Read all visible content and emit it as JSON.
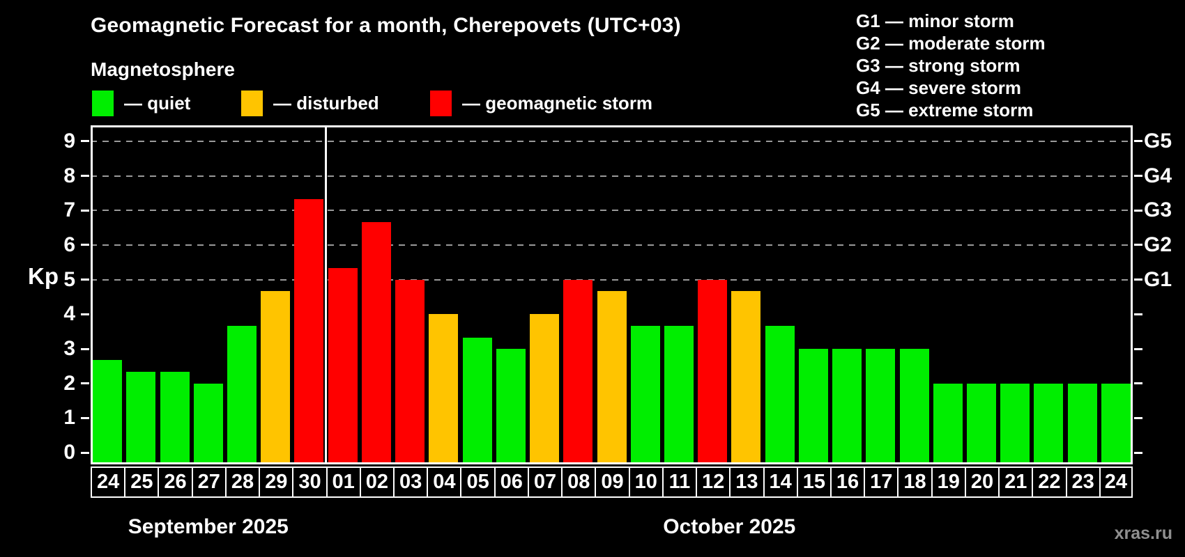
{
  "page": {
    "title": "Geomagnetic Forecast for a month, Cherepovets (UTC+03)",
    "subtitle": "Magnetosphere",
    "watermark": "xras.ru"
  },
  "legend": {
    "items": [
      {
        "status": "quiet",
        "label": "— quiet"
      },
      {
        "status": "disturbed",
        "label": "— disturbed"
      },
      {
        "status": "storm",
        "label": "— geomagnetic storm"
      }
    ]
  },
  "storm_scale_legend": [
    "G1 — minor storm",
    "G2 — moderate storm",
    "G3 — strong storm",
    "G4 — severe storm",
    "G5 — extreme storm"
  ],
  "colors": {
    "background": "#000000",
    "quiet": "#00ee00",
    "disturbed": "#ffc400",
    "storm": "#ff0000",
    "grid": "#9a9a9a",
    "axis": "#ffffff",
    "watermark": "#8f8f8f"
  },
  "chart_data": {
    "type": "bar",
    "title": "Geomagnetic Forecast for a month, Cherepovets (UTC+03)",
    "ylabel": "Kp",
    "ylim": [
      -0.34,
      9.46
    ],
    "y_ticks": [
      0,
      1,
      2,
      3,
      4,
      5,
      6,
      7,
      8,
      9
    ],
    "gridlines": [
      5,
      6,
      7,
      8,
      9
    ],
    "grid_on": true,
    "legend_position": "top",
    "right_axis": [
      {
        "kp": 5,
        "label": "G1"
      },
      {
        "kp": 6,
        "label": "G2"
      },
      {
        "kp": 7,
        "label": "G3"
      },
      {
        "kp": 8,
        "label": "G4"
      },
      {
        "kp": 9,
        "label": "G5"
      }
    ],
    "months": [
      {
        "label": "September 2025",
        "start": 0,
        "count": 7
      },
      {
        "label": "October 2025",
        "start": 7,
        "count": 24
      }
    ],
    "bars": [
      {
        "day": "24",
        "kp": 2.67,
        "status": "quiet"
      },
      {
        "day": "25",
        "kp": 2.33,
        "status": "quiet"
      },
      {
        "day": "26",
        "kp": 2.33,
        "status": "quiet"
      },
      {
        "day": "27",
        "kp": 2.0,
        "status": "quiet"
      },
      {
        "day": "28",
        "kp": 3.67,
        "status": "quiet"
      },
      {
        "day": "29",
        "kp": 4.67,
        "status": "disturbed"
      },
      {
        "day": "30",
        "kp": 7.33,
        "status": "storm"
      },
      {
        "day": "01",
        "kp": 5.33,
        "status": "storm"
      },
      {
        "day": "02",
        "kp": 6.67,
        "status": "storm"
      },
      {
        "day": "03",
        "kp": 5.0,
        "status": "storm"
      },
      {
        "day": "04",
        "kp": 4.0,
        "status": "disturbed"
      },
      {
        "day": "05",
        "kp": 3.33,
        "status": "quiet"
      },
      {
        "day": "06",
        "kp": 3.0,
        "status": "quiet"
      },
      {
        "day": "07",
        "kp": 4.0,
        "status": "disturbed"
      },
      {
        "day": "08",
        "kp": 5.0,
        "status": "storm"
      },
      {
        "day": "09",
        "kp": 4.67,
        "status": "disturbed"
      },
      {
        "day": "10",
        "kp": 3.67,
        "status": "quiet"
      },
      {
        "day": "11",
        "kp": 3.67,
        "status": "quiet"
      },
      {
        "day": "12",
        "kp": 5.0,
        "status": "storm"
      },
      {
        "day": "13",
        "kp": 4.67,
        "status": "disturbed"
      },
      {
        "day": "14",
        "kp": 3.67,
        "status": "quiet"
      },
      {
        "day": "15",
        "kp": 3.0,
        "status": "quiet"
      },
      {
        "day": "16",
        "kp": 3.0,
        "status": "quiet"
      },
      {
        "day": "17",
        "kp": 3.0,
        "status": "quiet"
      },
      {
        "day": "18",
        "kp": 3.0,
        "status": "quiet"
      },
      {
        "day": "19",
        "kp": 2.0,
        "status": "quiet"
      },
      {
        "day": "20",
        "kp": 2.0,
        "status": "quiet"
      },
      {
        "day": "21",
        "kp": 2.0,
        "status": "quiet"
      },
      {
        "day": "22",
        "kp": 2.0,
        "status": "quiet"
      },
      {
        "day": "23",
        "kp": 2.0,
        "status": "quiet"
      },
      {
        "day": "24",
        "kp": 2.0,
        "status": "quiet"
      }
    ]
  }
}
